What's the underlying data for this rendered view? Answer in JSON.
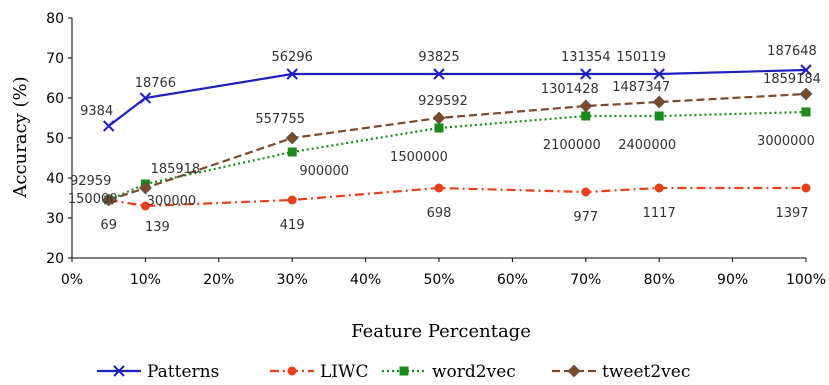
{
  "chart_data": {
    "type": "line",
    "xlabel": "Feature Percentage",
    "ylabel": "Accuracy (%)",
    "x": [
      5,
      10,
      30,
      50,
      70,
      80,
      100
    ],
    "xlim": [
      0,
      100
    ],
    "ylim": [
      20,
      80
    ],
    "x_ticks": [
      "0%",
      "10%",
      "20%",
      "30%",
      "40%",
      "50%",
      "60%",
      "70%",
      "80%",
      "90%",
      "100%"
    ],
    "y_ticks": [
      "20",
      "30",
      "40",
      "50",
      "60",
      "70",
      "80"
    ],
    "grid": false,
    "legend_position": "bottom",
    "series": [
      {
        "name": "Patterns",
        "color": "#1f1fbf",
        "marker": "x",
        "line_style": "solid",
        "values": [
          53,
          60,
          66,
          66,
          66,
          66,
          67
        ],
        "labels": [
          "9384",
          "18766",
          "56296",
          "93825",
          "131354",
          "150119",
          "187648"
        ]
      },
      {
        "name": "LIWC",
        "color": "#e8401c",
        "marker": "circle",
        "line_style": "dash-dot",
        "values": [
          34.5,
          33,
          34.5,
          37.5,
          36.5,
          37.5,
          37.5
        ],
        "labels": [
          "69",
          "139",
          "419",
          "698",
          "977",
          "1117",
          "1397"
        ]
      },
      {
        "name": "word2vec",
        "color": "#1a8a1a",
        "marker": "square",
        "line_style": "dotted",
        "values": [
          34.5,
          38.5,
          46.5,
          52.5,
          55.5,
          55.5,
          56.5
        ],
        "labels": [
          "150000",
          "300000",
          "900000",
          "1500000",
          "2100000",
          "2400000",
          "3000000"
        ]
      },
      {
        "name": "tweet2vec",
        "color": "#7a4a2a",
        "marker": "diamond",
        "line_style": "dashed",
        "values": [
          34.5,
          37.5,
          50,
          55,
          58,
          59,
          61
        ],
        "labels": [
          "92959",
          "185918",
          "557755",
          "929592",
          "1301428",
          "1487347",
          "1859184"
        ]
      }
    ]
  }
}
